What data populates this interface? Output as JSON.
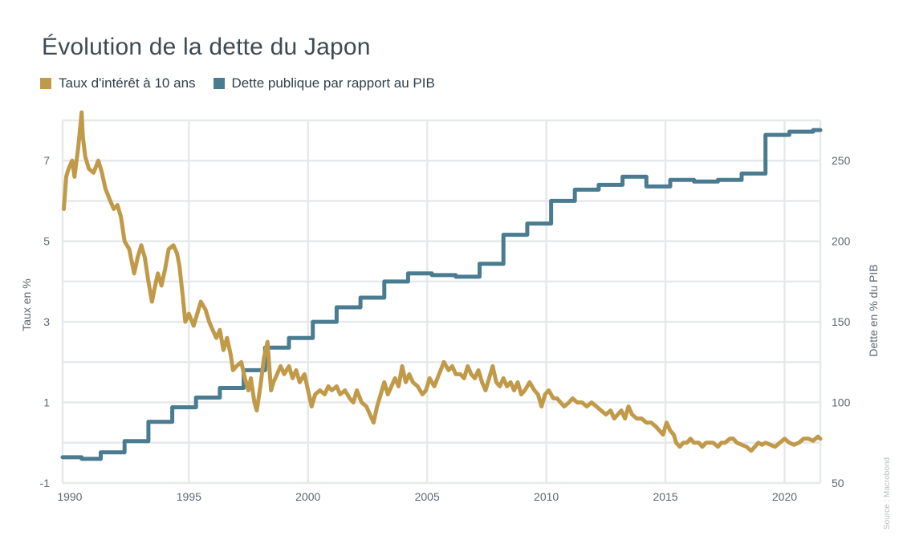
{
  "chart_data": {
    "type": "line",
    "title": "Évolution de la dette du Japon",
    "source": "Source : Macrobond",
    "x_ticks": [
      "1990",
      "1995",
      "2000",
      "2005",
      "2010",
      "2015",
      "2020"
    ],
    "xlim": [
      1989.7,
      2021.5
    ],
    "y_left": {
      "label": "Taux en %",
      "ticks": [
        "-1",
        "1",
        "3",
        "5",
        "7"
      ],
      "lim": [
        -1,
        8
      ]
    },
    "y_right": {
      "label": "Dette en % du PIB",
      "ticks": [
        "50",
        "100",
        "150",
        "200",
        "250"
      ],
      "lim": [
        50,
        275
      ]
    },
    "grid": true,
    "legend_position": "top-left",
    "series": [
      {
        "name": "Taux d'intérêt à 10 ans",
        "axis": "left",
        "color": "#c19a49",
        "points": [
          [
            1989.75,
            5.8
          ],
          [
            1989.85,
            6.6
          ],
          [
            1989.95,
            6.8
          ],
          [
            1990.1,
            7.0
          ],
          [
            1990.2,
            6.6
          ],
          [
            1990.35,
            7.3
          ],
          [
            1990.45,
            7.9
          ],
          [
            1990.5,
            8.2
          ],
          [
            1990.55,
            7.6
          ],
          [
            1990.65,
            7.1
          ],
          [
            1990.8,
            6.8
          ],
          [
            1991.0,
            6.7
          ],
          [
            1991.2,
            7.0
          ],
          [
            1991.35,
            6.7
          ],
          [
            1991.5,
            6.3
          ],
          [
            1991.7,
            6.0
          ],
          [
            1991.85,
            5.8
          ],
          [
            1992.0,
            5.9
          ],
          [
            1992.15,
            5.6
          ],
          [
            1992.3,
            5.0
          ],
          [
            1992.5,
            4.8
          ],
          [
            1992.7,
            4.2
          ],
          [
            1992.85,
            4.6
          ],
          [
            1993.0,
            4.9
          ],
          [
            1993.15,
            4.6
          ],
          [
            1993.3,
            4.0
          ],
          [
            1993.45,
            3.5
          ],
          [
            1993.55,
            3.8
          ],
          [
            1993.7,
            4.2
          ],
          [
            1993.85,
            3.9
          ],
          [
            1994.0,
            4.3
          ],
          [
            1994.15,
            4.8
          ],
          [
            1994.35,
            4.9
          ],
          [
            1994.5,
            4.7
          ],
          [
            1994.6,
            4.4
          ],
          [
            1994.75,
            3.6
          ],
          [
            1994.85,
            3.0
          ],
          [
            1995.0,
            3.2
          ],
          [
            1995.2,
            2.9
          ],
          [
            1995.35,
            3.2
          ],
          [
            1995.5,
            3.5
          ],
          [
            1995.7,
            3.3
          ],
          [
            1995.85,
            3.0
          ],
          [
            1996.0,
            2.8
          ],
          [
            1996.15,
            2.6
          ],
          [
            1996.3,
            2.8
          ],
          [
            1996.45,
            2.3
          ],
          [
            1996.6,
            2.6
          ],
          [
            1996.75,
            2.2
          ],
          [
            1996.85,
            1.8
          ],
          [
            1997.0,
            1.9
          ],
          [
            1997.2,
            2.0
          ],
          [
            1997.35,
            1.6
          ],
          [
            1997.5,
            1.3
          ],
          [
            1997.6,
            1.6
          ],
          [
            1997.75,
            1.0
          ],
          [
            1997.85,
            0.8
          ],
          [
            1998.0,
            1.4
          ],
          [
            1998.15,
            2.1
          ],
          [
            1998.3,
            2.5
          ],
          [
            1998.45,
            1.3
          ],
          [
            1998.55,
            1.5
          ],
          [
            1998.7,
            1.7
          ],
          [
            1998.85,
            1.9
          ],
          [
            1999.0,
            1.7
          ],
          [
            1999.2,
            1.9
          ],
          [
            1999.35,
            1.6
          ],
          [
            1999.5,
            1.8
          ],
          [
            1999.65,
            1.5
          ],
          [
            1999.85,
            1.7
          ],
          [
            2000.0,
            1.3
          ],
          [
            2000.15,
            0.9
          ],
          [
            2000.3,
            1.2
          ],
          [
            2000.5,
            1.3
          ],
          [
            2000.7,
            1.2
          ],
          [
            2000.85,
            1.4
          ],
          [
            2001.0,
            1.3
          ],
          [
            2001.2,
            1.4
          ],
          [
            2001.35,
            1.2
          ],
          [
            2001.55,
            1.3
          ],
          [
            2001.75,
            1.1
          ],
          [
            2001.9,
            1.0
          ],
          [
            2002.05,
            1.3
          ],
          [
            2002.25,
            1.0
          ],
          [
            2002.45,
            0.9
          ],
          [
            2002.6,
            0.7
          ],
          [
            2002.75,
            0.5
          ],
          [
            2002.9,
            0.9
          ],
          [
            2003.05,
            1.2
          ],
          [
            2003.2,
            1.5
          ],
          [
            2003.35,
            1.2
          ],
          [
            2003.5,
            1.4
          ],
          [
            2003.65,
            1.6
          ],
          [
            2003.8,
            1.4
          ],
          [
            2003.95,
            1.9
          ],
          [
            2004.1,
            1.5
          ],
          [
            2004.25,
            1.7
          ],
          [
            2004.4,
            1.5
          ],
          [
            2004.6,
            1.4
          ],
          [
            2004.8,
            1.2
          ],
          [
            2004.95,
            1.3
          ],
          [
            2005.1,
            1.6
          ],
          [
            2005.3,
            1.4
          ],
          [
            2005.5,
            1.7
          ],
          [
            2005.7,
            2.0
          ],
          [
            2005.9,
            1.8
          ],
          [
            2006.05,
            1.9
          ],
          [
            2006.2,
            1.7
          ],
          [
            2006.4,
            1.7
          ],
          [
            2006.55,
            1.6
          ],
          [
            2006.7,
            1.9
          ],
          [
            2006.85,
            1.7
          ],
          [
            2007.0,
            1.6
          ],
          [
            2007.15,
            1.8
          ],
          [
            2007.3,
            1.5
          ],
          [
            2007.45,
            1.3
          ],
          [
            2007.6,
            1.6
          ],
          [
            2007.75,
            1.9
          ],
          [
            2007.9,
            1.5
          ],
          [
            2008.05,
            1.4
          ],
          [
            2008.2,
            1.6
          ],
          [
            2008.35,
            1.4
          ],
          [
            2008.5,
            1.5
          ],
          [
            2008.65,
            1.3
          ],
          [
            2008.8,
            1.5
          ],
          [
            2008.95,
            1.2
          ],
          [
            2009.1,
            1.3
          ],
          [
            2009.3,
            1.5
          ],
          [
            2009.5,
            1.3
          ],
          [
            2009.65,
            1.2
          ],
          [
            2009.8,
            0.9
          ],
          [
            2009.95,
            1.2
          ],
          [
            2010.1,
            1.3
          ],
          [
            2010.3,
            1.1
          ],
          [
            2010.45,
            1.1
          ],
          [
            2010.6,
            1.0
          ],
          [
            2010.75,
            0.9
          ],
          [
            2010.95,
            1.0
          ],
          [
            2011.1,
            1.1
          ],
          [
            2011.3,
            1.0
          ],
          [
            2011.5,
            1.0
          ],
          [
            2011.7,
            0.9
          ],
          [
            2011.9,
            1.0
          ],
          [
            2012.1,
            0.9
          ],
          [
            2012.3,
            0.8
          ],
          [
            2012.5,
            0.7
          ],
          [
            2012.7,
            0.8
          ],
          [
            2012.85,
            0.6
          ],
          [
            2013.0,
            0.7
          ],
          [
            2013.15,
            0.8
          ],
          [
            2013.3,
            0.6
          ],
          [
            2013.45,
            0.9
          ],
          [
            2013.6,
            0.7
          ],
          [
            2013.8,
            0.6
          ],
          [
            2014.0,
            0.6
          ],
          [
            2014.2,
            0.5
          ],
          [
            2014.4,
            0.5
          ],
          [
            2014.6,
            0.4
          ],
          [
            2014.75,
            0.3
          ],
          [
            2014.9,
            0.2
          ],
          [
            2015.05,
            0.5
          ],
          [
            2015.2,
            0.3
          ],
          [
            2015.35,
            0.2
          ],
          [
            2015.45,
            0.0
          ],
          [
            2015.6,
            -0.1
          ],
          [
            2015.75,
            0.0
          ],
          [
            2015.9,
            0.0
          ],
          [
            2016.05,
            0.1
          ],
          [
            2016.2,
            0.0
          ],
          [
            2016.4,
            0.0
          ],
          [
            2016.55,
            -0.1
          ],
          [
            2016.7,
            0.0
          ],
          [
            2016.85,
            0.0
          ],
          [
            2017.0,
            0.0
          ],
          [
            2017.2,
            -0.1
          ],
          [
            2017.35,
            0.0
          ],
          [
            2017.5,
            0.0
          ],
          [
            2017.7,
            0.1
          ],
          [
            2017.85,
            0.1
          ],
          [
            2018.0,
            0.0
          ],
          [
            2018.2,
            -0.05
          ],
          [
            2018.4,
            -0.1
          ],
          [
            2018.6,
            -0.2
          ],
          [
            2018.75,
            -0.1
          ],
          [
            2018.9,
            0.0
          ],
          [
            2019.05,
            -0.05
          ],
          [
            2019.2,
            0.0
          ],
          [
            2019.4,
            -0.05
          ],
          [
            2019.6,
            -0.1
          ],
          [
            2019.8,
            0.0
          ],
          [
            2020.0,
            0.1
          ],
          [
            2020.2,
            0.0
          ],
          [
            2020.4,
            -0.05
          ],
          [
            2020.6,
            0.0
          ],
          [
            2020.8,
            0.1
          ],
          [
            2021.0,
            0.1
          ],
          [
            2021.2,
            0.05
          ],
          [
            2021.4,
            0.15
          ],
          [
            2021.5,
            0.1
          ]
        ]
      },
      {
        "name": "Dette publique par rapport au PIB",
        "axis": "right",
        "color": "#4a7c91",
        "step": true,
        "points": [
          [
            1989.7,
            66
          ],
          [
            1990.5,
            66
          ],
          [
            1990.5,
            65
          ],
          [
            1991.3,
            65
          ],
          [
            1991.3,
            69
          ],
          [
            1992.3,
            69
          ],
          [
            1992.3,
            76
          ],
          [
            1993.3,
            76
          ],
          [
            1993.3,
            88
          ],
          [
            1994.3,
            88
          ],
          [
            1994.3,
            97
          ],
          [
            1995.3,
            97
          ],
          [
            1995.3,
            103
          ],
          [
            1996.3,
            103
          ],
          [
            1996.3,
            109
          ],
          [
            1997.3,
            109
          ],
          [
            1997.3,
            120
          ],
          [
            1998.2,
            120
          ],
          [
            1998.2,
            134
          ],
          [
            1999.2,
            134
          ],
          [
            1999.2,
            140
          ],
          [
            2000.2,
            140
          ],
          [
            2000.2,
            150
          ],
          [
            2001.2,
            150
          ],
          [
            2001.2,
            159
          ],
          [
            2002.2,
            159
          ],
          [
            2002.2,
            165
          ],
          [
            2003.2,
            165
          ],
          [
            2003.2,
            175
          ],
          [
            2004.2,
            175
          ],
          [
            2004.2,
            180
          ],
          [
            2005.2,
            180
          ],
          [
            2005.2,
            179
          ],
          [
            2006.2,
            179
          ],
          [
            2006.2,
            178
          ],
          [
            2007.2,
            178
          ],
          [
            2007.2,
            186
          ],
          [
            2008.2,
            186
          ],
          [
            2008.2,
            204
          ],
          [
            2009.2,
            204
          ],
          [
            2009.2,
            211
          ],
          [
            2010.2,
            211
          ],
          [
            2010.2,
            225
          ],
          [
            2011.2,
            225
          ],
          [
            2011.2,
            232
          ],
          [
            2012.2,
            232
          ],
          [
            2012.2,
            235
          ],
          [
            2013.2,
            235
          ],
          [
            2013.2,
            240
          ],
          [
            2014.2,
            240
          ],
          [
            2014.2,
            234
          ],
          [
            2015.2,
            234
          ],
          [
            2015.2,
            238
          ],
          [
            2016.2,
            238
          ],
          [
            2016.2,
            237
          ],
          [
            2017.2,
            237
          ],
          [
            2017.2,
            238
          ],
          [
            2018.2,
            238
          ],
          [
            2018.2,
            242
          ],
          [
            2019.2,
            242
          ],
          [
            2019.2,
            266
          ],
          [
            2020.2,
            266
          ],
          [
            2020.2,
            268
          ],
          [
            2021.2,
            268
          ],
          [
            2021.2,
            269
          ],
          [
            2021.5,
            269
          ]
        ]
      }
    ]
  }
}
